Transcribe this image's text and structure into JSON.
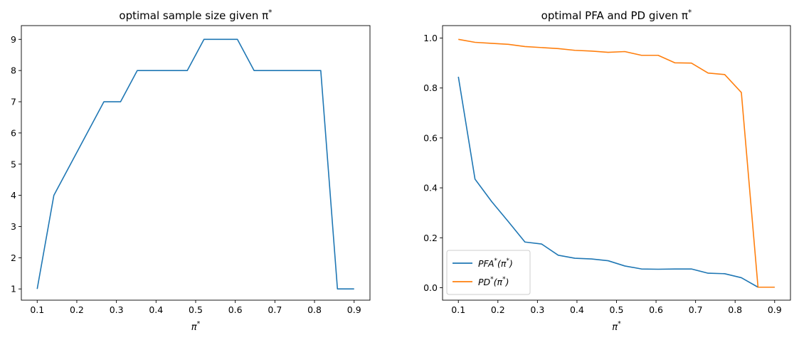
{
  "chart_data": [
    {
      "type": "line",
      "title": "optimal sample size given π*",
      "xlabel": "π*",
      "ylabel": "",
      "xlim": [
        0.06,
        0.94
      ],
      "ylim": [
        0.64,
        9.44
      ],
      "xticks": [
        0.1,
        0.2,
        0.3,
        0.4,
        0.5,
        0.6,
        0.7,
        0.8,
        0.9
      ],
      "xtick_labels": [
        "0.1",
        "0.2",
        "0.3",
        "0.4",
        "0.5",
        "0.6",
        "0.7",
        "0.8",
        "0.9"
      ],
      "yticks": [
        1,
        2,
        3,
        4,
        5,
        6,
        7,
        8,
        9
      ],
      "ytick_labels": [
        "1",
        "2",
        "3",
        "4",
        "5",
        "6",
        "7",
        "8",
        "9"
      ],
      "grid": false,
      "legend": null,
      "x": [
        0.1,
        0.1421,
        0.1842,
        0.2263,
        0.2684,
        0.3105,
        0.3526,
        0.3947,
        0.4368,
        0.4789,
        0.5211,
        0.5632,
        0.6053,
        0.6474,
        0.6895,
        0.7316,
        0.7737,
        0.8158,
        0.8579,
        0.9
      ],
      "series": [
        {
          "values": [
            1,
            4,
            5,
            6,
            7,
            7,
            8,
            8,
            8,
            8,
            9,
            9,
            9,
            8,
            8,
            8,
            8,
            8,
            1,
            1
          ],
          "color": "#1f77b4"
        }
      ]
    },
    {
      "type": "line",
      "title": "optimal PFA and PD given π*",
      "xlabel": "π*",
      "ylabel": "",
      "xlim": [
        0.06,
        0.94
      ],
      "ylim": [
        -0.05,
        1.05
      ],
      "xticks": [
        0.1,
        0.2,
        0.3,
        0.4,
        0.5,
        0.6,
        0.7,
        0.8,
        0.9
      ],
      "xtick_labels": [
        "0.1",
        "0.2",
        "0.3",
        "0.4",
        "0.5",
        "0.6",
        "0.7",
        "0.8",
        "0.9"
      ],
      "yticks": [
        0.0,
        0.2,
        0.4,
        0.6,
        0.8,
        1.0
      ],
      "ytick_labels": [
        "0.0",
        "0.2",
        "0.4",
        "0.6",
        "0.8",
        "1.0"
      ],
      "grid": false,
      "legend": "lower-left",
      "x": [
        0.1,
        0.1421,
        0.1842,
        0.2263,
        0.2684,
        0.3105,
        0.3526,
        0.3947,
        0.4368,
        0.4789,
        0.5211,
        0.5632,
        0.6053,
        0.6474,
        0.6895,
        0.7316,
        0.7737,
        0.8158,
        0.8579,
        0.9
      ],
      "series": [
        {
          "name": "PFA*(π*)",
          "color": "#1f77b4",
          "values": [
            0.845,
            0.435,
            0.345,
            0.265,
            0.183,
            0.175,
            0.13,
            0.118,
            0.115,
            0.108,
            0.087,
            0.075,
            0.074,
            0.075,
            0.075,
            0.058,
            0.056,
            0.04,
            0.002,
            0.002
          ]
        },
        {
          "name": "PD*(π*)",
          "color": "#ff7f0e",
          "values": [
            0.995,
            0.983,
            0.979,
            0.975,
            0.966,
            0.962,
            0.958,
            0.951,
            0.948,
            0.943,
            0.946,
            0.931,
            0.931,
            0.901,
            0.9,
            0.86,
            0.854,
            0.782,
            0.002,
            0.002
          ]
        }
      ]
    }
  ]
}
